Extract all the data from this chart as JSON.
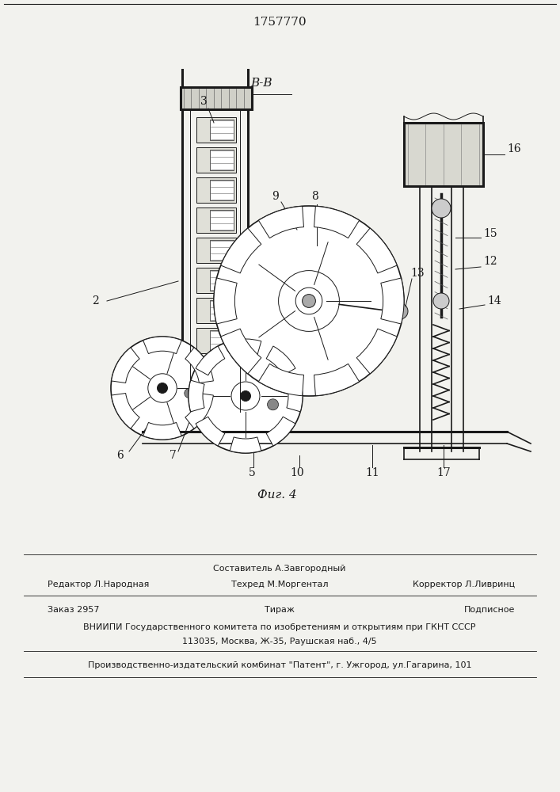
{
  "patent_number": "1757770",
  "fig_label": "Фиг. 4",
  "section_label": "В-В",
  "bg_color": "#f2f2ee",
  "line_color": "#1a1a1a",
  "footer": {
    "line1_left": "Редактор Л.Народная",
    "line1_center": "Составитель А.Завгородный",
    "line1_right": "Корректор Л.Ливринц",
    "line2_center": "Техред М.Моргентал",
    "line3_left": "Заказ 2957",
    "line3_center": "Тираж",
    "line3_right": "Подписное",
    "line4": "ВНИИПИ Государственного комитета по изобретениям и открытиям при ГКНТ СССР",
    "line5": "113035, Москва, Ж-35, Раушская наб., 4/5",
    "line6": "Производственно-издательский комбинат \"Патент\", г. Ужгород, ул.Гагарина, 101"
  }
}
